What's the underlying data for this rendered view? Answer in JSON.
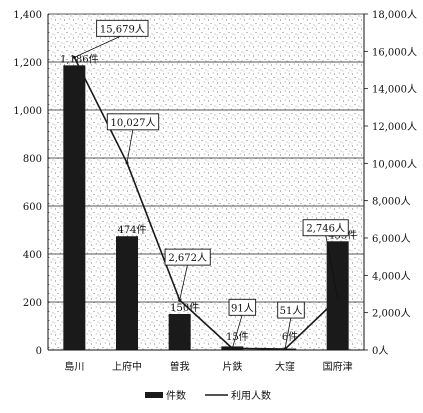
{
  "chart_data": {
    "type": "bar",
    "categories": [
      "島川",
      "上府中",
      "曽我",
      "片鉄",
      "大窪",
      "国府津"
    ],
    "series": [
      {
        "name": "件数",
        "kind": "bar",
        "axis": "left",
        "values": [
          1186,
          474,
          150,
          15,
          6,
          453
        ],
        "labels": [
          "1,186件",
          "474件",
          "150件",
          "15件",
          "6件",
          "453件"
        ]
      },
      {
        "name": "利用人数",
        "kind": "line",
        "axis": "right",
        "values": [
          15679,
          10027,
          2672,
          91,
          51,
          2746
        ],
        "labels": [
          "15,679人",
          "10,027人",
          "2,672人",
          "91人",
          "51人",
          "2,746人"
        ]
      }
    ],
    "ylim_left": [
      0,
      1400
    ],
    "ylim_right": [
      0,
      18000
    ],
    "left_ticks": [
      "0",
      "200",
      "400",
      "600",
      "800",
      "1,000",
      "1,200",
      "1,400"
    ],
    "right_ticks": [
      "0人",
      "2,000人",
      "4,000人",
      "6,000人",
      "8,000人",
      "10,000人",
      "12,000人",
      "14,000人",
      "16,000人",
      "18,000人"
    ],
    "grid": true,
    "legend_position": "bottom",
    "colors": {
      "bar": "#1a1a1a",
      "line": "#1a1a1a",
      "background_dots": "#555555"
    }
  }
}
